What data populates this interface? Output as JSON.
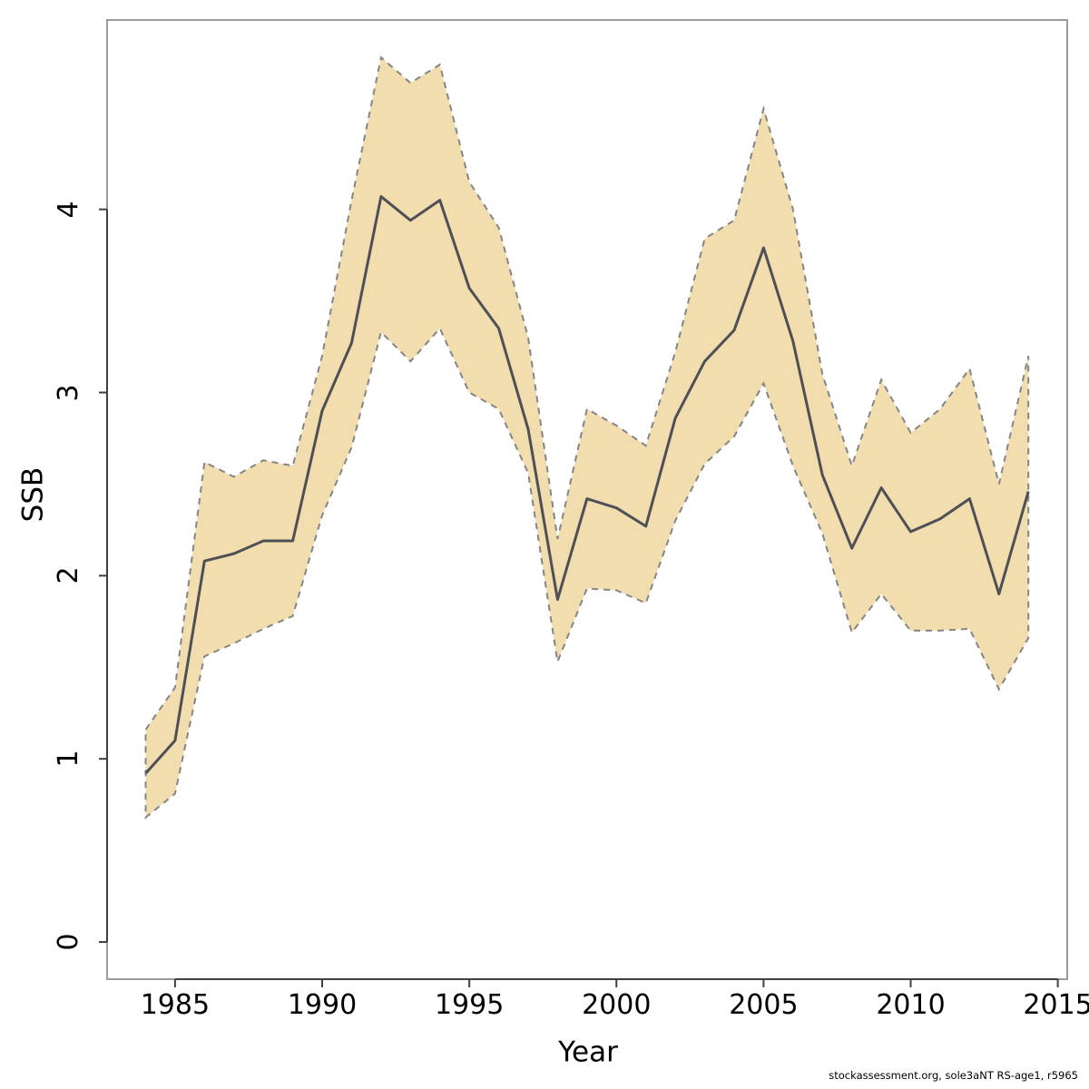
{
  "page": {
    "background": "#ffffff",
    "text_color": "#000000"
  },
  "footer": {
    "text": "stockassessment.org, sole3aNT RS-age1, r5965"
  },
  "colors": {
    "band_fill": "#f2ddaf",
    "band_border": "#858585",
    "mean_line": "#4e5055",
    "box_border": "#9b9b9b",
    "axis_line": "#404040"
  },
  "chart_data": {
    "type": "area",
    "title": "",
    "xlabel": "Year",
    "ylabel": "SSB",
    "grid": false,
    "legend": null,
    "xlim": [
      1982.69,
      2015.32
    ],
    "ylim": [
      -0.203,
      5.034
    ],
    "x_ticks": [
      1985,
      1990,
      1995,
      2000,
      2005,
      2010,
      2015
    ],
    "y_ticks": [
      0,
      1,
      2,
      3,
      4
    ],
    "x": [
      1984,
      1985,
      1986,
      1987,
      1988,
      1989,
      1990,
      1991,
      1992,
      1993,
      1994,
      1995,
      1996,
      1997,
      1998,
      1999,
      2000,
      2001,
      2002,
      2003,
      2004,
      2005,
      2006,
      2007,
      2008,
      2009,
      2010,
      2011,
      2012,
      2013,
      2014
    ],
    "series": [
      {
        "name": "mean",
        "label": "SSB estimate",
        "style": "solid",
        "values": [
          0.92,
          1.1,
          2.08,
          2.12,
          2.19,
          2.19,
          2.9,
          3.27,
          4.07,
          3.94,
          4.05,
          3.57,
          3.35,
          2.8,
          1.87,
          2.42,
          2.37,
          2.27,
          2.86,
          3.17,
          3.34,
          3.79,
          3.28,
          2.55,
          2.15,
          2.48,
          2.24,
          2.31,
          2.42,
          1.9,
          2.46
        ]
      },
      {
        "name": "lower",
        "label": "confidence band lower",
        "style": "dashed",
        "values": [
          0.68,
          0.81,
          1.56,
          1.63,
          1.71,
          1.78,
          2.33,
          2.7,
          3.33,
          3.17,
          3.35,
          3.0,
          2.91,
          2.56,
          1.53,
          1.93,
          1.92,
          1.85,
          2.3,
          2.61,
          2.76,
          3.05,
          2.6,
          2.23,
          1.69,
          1.9,
          1.7,
          1.7,
          1.71,
          1.38,
          1.66
        ]
      },
      {
        "name": "upper",
        "label": "confidence band upper",
        "style": "dashed",
        "values": [
          1.16,
          1.39,
          2.62,
          2.54,
          2.63,
          2.6,
          3.2,
          4.05,
          4.83,
          4.69,
          4.79,
          4.15,
          3.9,
          3.3,
          2.2,
          2.91,
          2.82,
          2.71,
          3.22,
          3.84,
          3.94,
          4.55,
          4.0,
          3.1,
          2.6,
          3.07,
          2.78,
          2.91,
          3.13,
          2.5,
          3.2
        ]
      }
    ]
  }
}
